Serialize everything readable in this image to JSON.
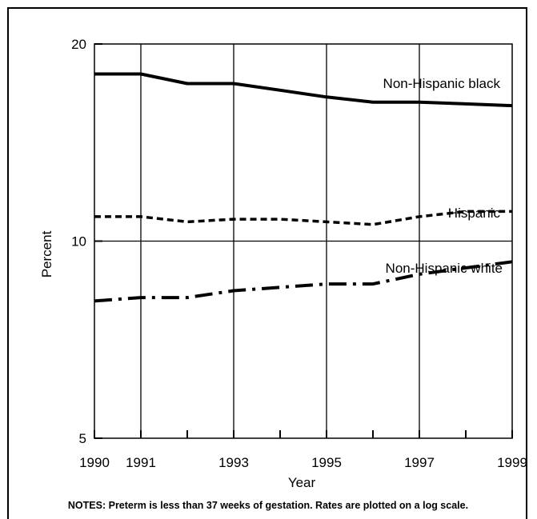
{
  "chart_data": {
    "type": "line",
    "xlabel": "Year",
    "ylabel": "Percent",
    "x_ticks_labeled": [
      1990,
      1991,
      1993,
      1995,
      1997,
      1999
    ],
    "x_ticks_all": [
      1990,
      1991,
      1992,
      1993,
      1994,
      1995,
      1996,
      1997,
      1998,
      1999
    ],
    "y_ticks": [
      5,
      10,
      20
    ],
    "y_scale": "log",
    "ylim": [
      5,
      20
    ],
    "xlim": [
      1990,
      1999
    ],
    "grid": "vertical lines at 1991, 1993, 1995, 1997; horizontal line at 10",
    "x": [
      1990,
      1991,
      1992,
      1993,
      1994,
      1995,
      1996,
      1997,
      1998,
      1999
    ],
    "series": [
      {
        "name": "Non-Hispanic black",
        "values": [
          18.0,
          18.0,
          17.4,
          17.4,
          17.0,
          16.6,
          16.3,
          16.3,
          16.2,
          16.1
        ],
        "line_style": "solid",
        "color": "#000000"
      },
      {
        "name": "Hispanic",
        "values": [
          10.9,
          10.9,
          10.7,
          10.8,
          10.8,
          10.7,
          10.6,
          10.9,
          11.1,
          11.1
        ],
        "line_style": "dashed",
        "color": "#000000"
      },
      {
        "name": "Non-Hispanic white",
        "values": [
          8.1,
          8.2,
          8.2,
          8.4,
          8.5,
          8.6,
          8.6,
          8.9,
          9.1,
          9.3
        ],
        "line_style": "dash-dot",
        "color": "#000000"
      }
    ]
  },
  "notes": "NOTES:  Preterm is less than 37 weeks of gestation. Rates are plotted on a log scale."
}
